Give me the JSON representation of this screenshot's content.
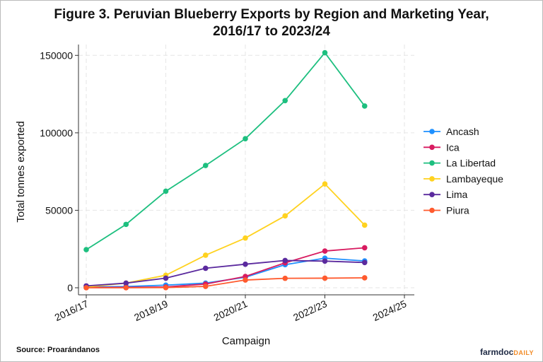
{
  "chart_data": {
    "type": "line",
    "title": "Figure 3. Peruvian Blueberry Exports by Region and Marketing Year, 2016/17 to 2023/24",
    "title_lines": [
      "Figure 3. Peruvian Blueberry Exports by Region and Marketing Year,",
      "2016/17 to 2023/24"
    ],
    "xlabel": "Campaign",
    "ylabel": "Total tonnes exported",
    "x": [
      "2016/17",
      "2017/18",
      "2018/19",
      "2019/20",
      "2020/21",
      "2021/22",
      "2022/23",
      "2023/24"
    ],
    "xticks": [
      "2016/17",
      "2018/19",
      "2020/21",
      "2022/23",
      "2024/25"
    ],
    "xlim": [
      "2016/17",
      "2024/25"
    ],
    "yticks": [
      0,
      50000,
      100000,
      150000
    ],
    "ylim": [
      0,
      150000
    ],
    "grid": true,
    "legend_position": "right",
    "series": [
      {
        "name": "Ancash",
        "color": "#1e90ff",
        "values": [
          500,
          800,
          1700,
          3000,
          6800,
          14900,
          19100,
          17300
        ]
      },
      {
        "name": "Ica",
        "color": "#d81b60",
        "values": [
          200,
          300,
          500,
          2400,
          7300,
          16100,
          23700,
          25800
        ]
      },
      {
        "name": "La Libertad",
        "color": "#1dbf7f",
        "values": [
          24600,
          40900,
          62300,
          78900,
          96200,
          120800,
          151700,
          117300
        ]
      },
      {
        "name": "Lambayeque",
        "color": "#ffd21f",
        "values": [
          500,
          3000,
          8100,
          21000,
          32100,
          46400,
          67000,
          40400
        ]
      },
      {
        "name": "Lima",
        "color": "#5b2a9e",
        "values": [
          1200,
          3000,
          6200,
          12600,
          15200,
          17600,
          17200,
          16300
        ]
      },
      {
        "name": "Piura",
        "color": "#ff5a2e",
        "values": [
          0,
          0,
          100,
          900,
          5000,
          6100,
          6200,
          6400
        ]
      }
    ]
  },
  "footer": {
    "source": "Source: Proarándanos",
    "logo_main": "farmdoc",
    "logo_accent": "DAILY"
  }
}
